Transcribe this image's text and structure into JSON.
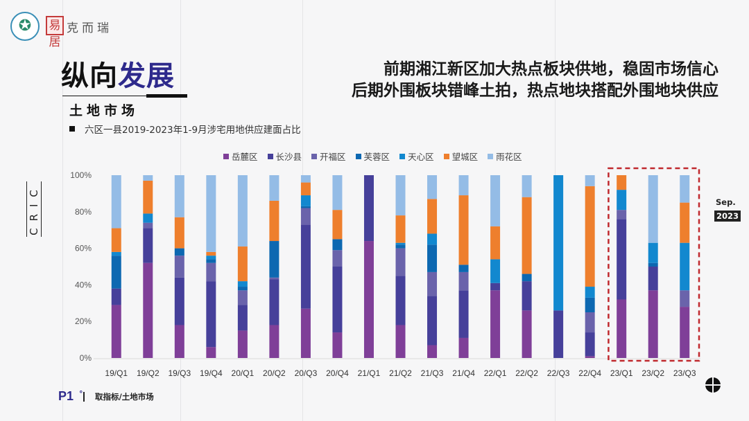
{
  "header": {
    "brand_text": "克而瑞",
    "seal_text": "易居",
    "logo_icon": "star-emblem-icon"
  },
  "section": {
    "title_part1": "纵向",
    "title_part2": "发展",
    "subtitle": "土地市场"
  },
  "headline": {
    "line1": "前期湘江新区加大热点板块供地，稳固市场信心",
    "line2": "后期外围板块错峰土拍，热点地块搭配外围地块供应"
  },
  "bullet_text": "六区一县2019-2023年1-9月涉宅用地供应建面占比",
  "side_badge": {
    "month": "Sep.",
    "year": "2023"
  },
  "watermark": "CRIC",
  "footer": {
    "page": "P1",
    "page_mark": "°",
    "text": "取指标/土地市场",
    "corner_icon": "crosshair-icon"
  },
  "colors": {
    "accent_blue": "#2e2a8c",
    "highlight_box": "#c0282d"
  },
  "chart_data": {
    "type": "bar",
    "stacked": true,
    "normalized": true,
    "title": "",
    "xlabel": "",
    "ylabel": "",
    "ylim": [
      0,
      100
    ],
    "yticks": [
      "0%",
      "20%",
      "40%",
      "60%",
      "80%",
      "100%"
    ],
    "legend_position": "top",
    "grid": false,
    "categories": [
      "19/Q1",
      "19/Q2",
      "19/Q3",
      "19/Q4",
      "20/Q1",
      "20/Q2",
      "20/Q3",
      "20/Q4",
      "21/Q1",
      "21/Q2",
      "21/Q3",
      "21/Q4",
      "22/Q1",
      "22/Q2",
      "22/Q3",
      "22/Q4",
      "23/Q1",
      "23/Q2",
      "23/Q3"
    ],
    "highlight_categories": [
      "23/Q1",
      "23/Q2",
      "23/Q3"
    ],
    "series": [
      {
        "name": "岳麓区",
        "color": "#7f3f98",
        "values": [
          29,
          52,
          18,
          6,
          15,
          18,
          27,
          14,
          64,
          18,
          7,
          11,
          37,
          26,
          0,
          1,
          32,
          37,
          28
        ]
      },
      {
        "name": "长沙县",
        "color": "#46409a",
        "values": [
          9,
          19,
          26,
          36,
          14,
          25,
          46,
          36,
          36,
          27,
          27,
          26,
          4,
          16,
          26,
          13,
          44,
          13,
          0
        ]
      },
      {
        "name": "开福区",
        "color": "#6a63ab",
        "values": [
          0,
          3,
          12,
          10,
          8,
          1,
          9,
          9,
          0,
          15,
          13,
          10,
          0,
          0,
          0,
          11,
          5,
          0,
          9
        ]
      },
      {
        "name": "芙蓉区",
        "color": "#0d68b1",
        "values": [
          18,
          0,
          4,
          2,
          2,
          20,
          1,
          6,
          0,
          2,
          15,
          4,
          0,
          4,
          0,
          8,
          0,
          2,
          0
        ]
      },
      {
        "name": "天心区",
        "color": "#1288cf",
        "values": [
          2,
          5,
          0,
          2,
          3,
          0,
          6,
          0,
          0,
          1,
          6,
          0,
          13,
          0,
          74,
          6,
          11,
          11,
          26
        ]
      },
      {
        "name": "望城区",
        "color": "#ee7f2d",
        "values": [
          13,
          18,
          17,
          2,
          19,
          22,
          7,
          16,
          0,
          15,
          19,
          38,
          18,
          42,
          0,
          55,
          8,
          0,
          22
        ]
      },
      {
        "name": "雨花区",
        "color": "#94bce6",
        "values": [
          29,
          3,
          23,
          42,
          39,
          14,
          4,
          19,
          0,
          22,
          13,
          11,
          28,
          12,
          0,
          6,
          0,
          37,
          15
        ]
      }
    ]
  }
}
